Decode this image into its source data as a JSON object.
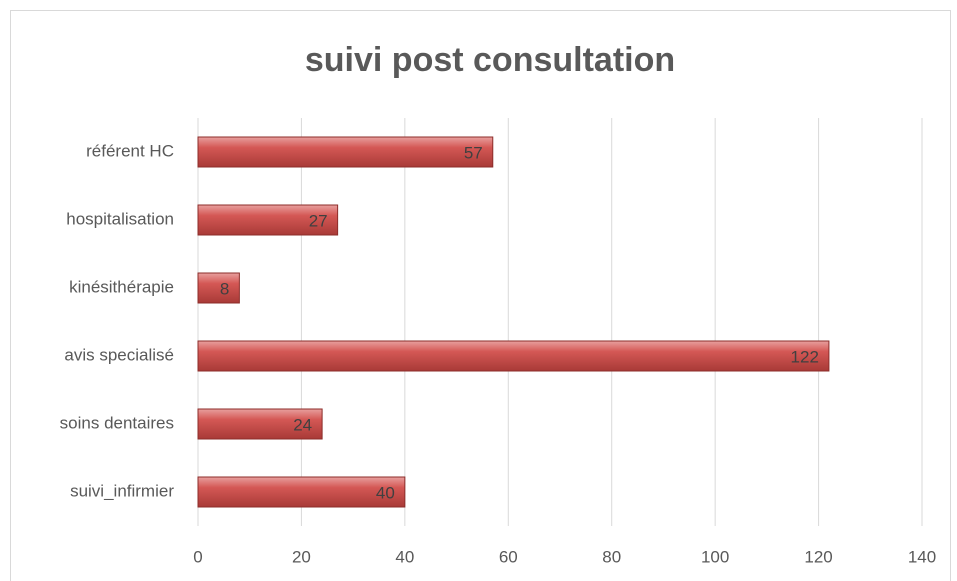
{
  "chart_data": {
    "type": "bar",
    "orientation": "horizontal",
    "title": "suivi post consultation",
    "categories": [
      "référent HC",
      "hospitalisation",
      "kinésithérapie",
      "avis specialisé",
      "soins dentaires",
      "suivi_infirmier"
    ],
    "values": [
      57,
      27,
      8,
      122,
      24,
      40
    ],
    "color": "#c0504d",
    "xlim": [
      0,
      140
    ],
    "xticks": [
      0,
      20,
      40,
      60,
      80,
      100,
      120,
      140
    ],
    "grid": true,
    "data_labels": true
  }
}
